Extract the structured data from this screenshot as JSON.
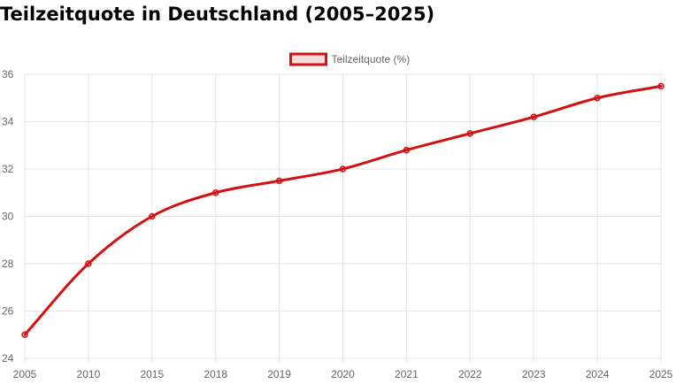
{
  "page": {
    "title": "Teilzeitquote in Deutschland (2005–2025)"
  },
  "chart_data": {
    "type": "line",
    "title": "Teilzeitquote in Deutschland (2005–2025)",
    "xlabel": "",
    "ylabel": "",
    "categories": [
      "2005",
      "2010",
      "2015",
      "2018",
      "2019",
      "2020",
      "2021",
      "2022",
      "2023",
      "2024",
      "2025"
    ],
    "series": [
      {
        "name": "Teilzeitquote (%)",
        "values": [
          25,
          28,
          30,
          31,
          31.5,
          32,
          32.8,
          33.5,
          34.2,
          35,
          35.5
        ],
        "color": "#d41111",
        "fill": "rgba(212,17,17,0.15)"
      }
    ],
    "ylim": [
      24,
      36
    ],
    "yticks": [
      24,
      26,
      28,
      30,
      32,
      34,
      36
    ],
    "grid": true,
    "legend_position": "top-center",
    "smooth": true
  }
}
